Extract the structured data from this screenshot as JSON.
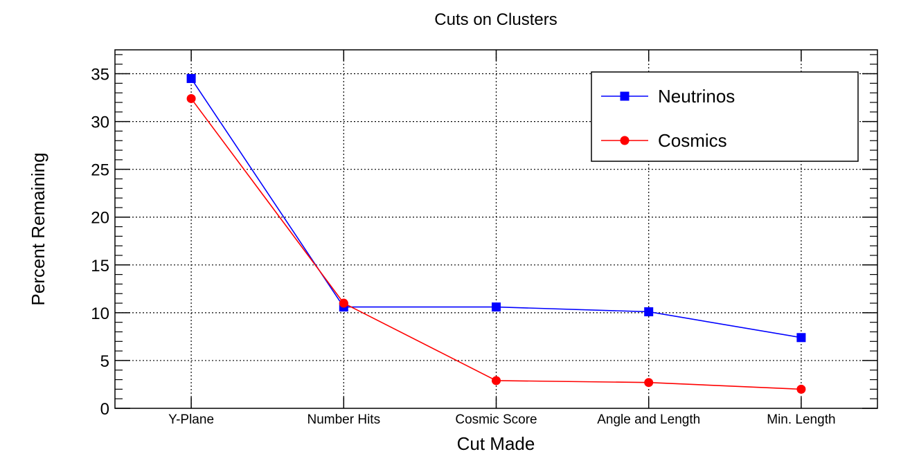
{
  "chart_data": {
    "type": "line",
    "title": "Cuts on Clusters",
    "xlabel": "Cut Made",
    "ylabel": "Percent Remaining",
    "categories": [
      "Y-Plane",
      "Number Hits",
      "Cosmic Score",
      "Angle and Length",
      "Min. Length"
    ],
    "ylim": [
      0,
      37.5
    ],
    "yticks": [
      0,
      5,
      10,
      15,
      20,
      25,
      30,
      35
    ],
    "grid": true,
    "legend_position": "top-right",
    "series": [
      {
        "name": "Neutrinos",
        "color": "#0000ff",
        "marker": "square",
        "values": [
          34.5,
          10.6,
          10.6,
          10.1,
          7.4
        ]
      },
      {
        "name": "Cosmics",
        "color": "#ff0000",
        "marker": "circle",
        "values": [
          32.4,
          11.0,
          2.9,
          2.7,
          2.0
        ]
      }
    ]
  }
}
